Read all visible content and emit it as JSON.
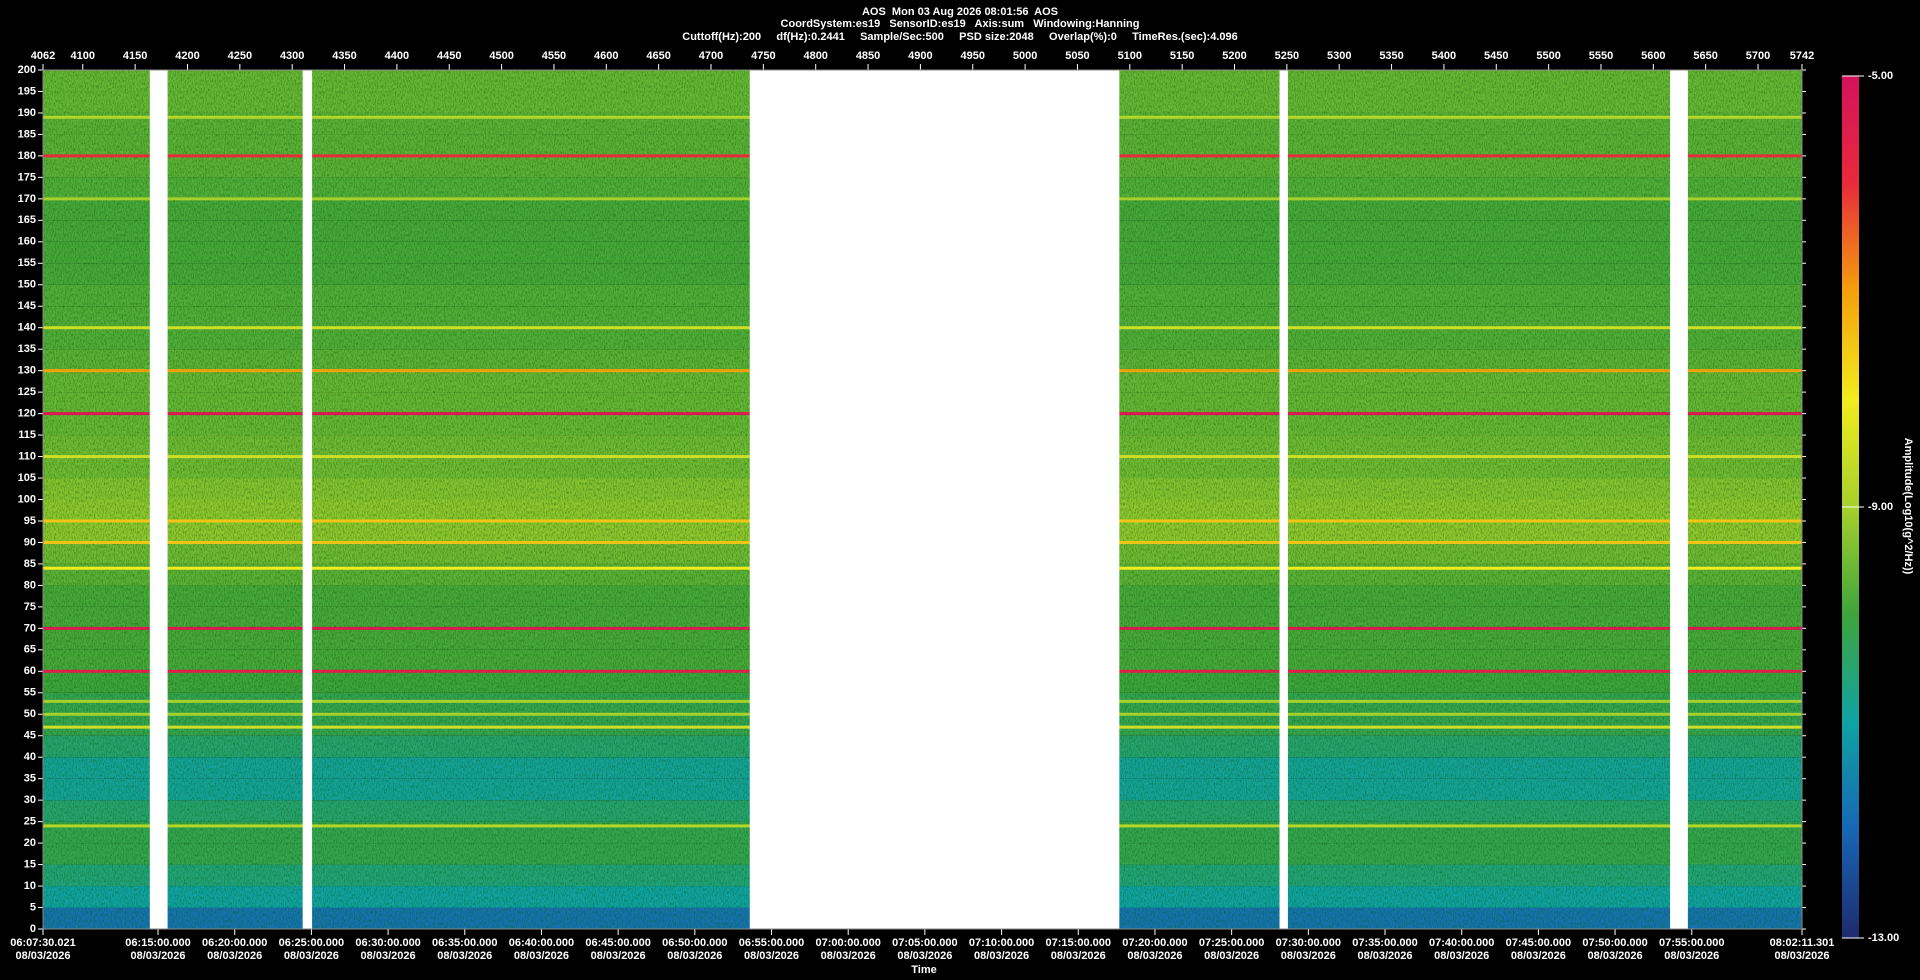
{
  "chart_data": {
    "type": "spectrogram",
    "title": "AOS  Mon 03 Aug 2026 08:01:56  AOS",
    "header_lines": [
      "CoordSystem:es19   SensorID:es19   Axis:sum   Windowing:Hanning",
      "Cuttoff(Hz):200     df(Hz):0.2441     Sample/Sec:500     PSD size:2048     Overlap(%):0     TimeRes.(sec):4.096"
    ],
    "xlabel": "Time",
    "colorbar_label": "Amplitude(Log10(g^2/Hz))",
    "xlim": [
      4062,
      5742
    ],
    "xticks": [
      4062,
      4100,
      4150,
      4200,
      4250,
      4300,
      4350,
      4400,
      4450,
      4500,
      4550,
      4600,
      4650,
      4700,
      4750,
      4800,
      4850,
      4900,
      4950,
      5000,
      5050,
      5100,
      5150,
      5200,
      5250,
      5300,
      5350,
      5400,
      5450,
      5500,
      5550,
      5600,
      5650,
      5700,
      5742
    ],
    "time_ticks": [
      {
        "value": 4062,
        "label": "06:07:30.021",
        "date": "08/03/2026"
      },
      {
        "value": 4171.86,
        "label": "06:15:00.000",
        "date": "08/03/2026"
      },
      {
        "value": 4245.1,
        "label": "06:20:00.000",
        "date": "08/03/2026"
      },
      {
        "value": 4318.34,
        "label": "06:25:00.000",
        "date": "08/03/2026"
      },
      {
        "value": 4391.59,
        "label": "06:30:00.000",
        "date": "08/03/2026"
      },
      {
        "value": 4464.83,
        "label": "06:35:00.000",
        "date": "08/03/2026"
      },
      {
        "value": 4538.07,
        "label": "06:40:00.000",
        "date": "08/03/2026"
      },
      {
        "value": 4611.31,
        "label": "06:45:00.000",
        "date": "08/03/2026"
      },
      {
        "value": 4684.56,
        "label": "06:50:00.000",
        "date": "08/03/2026"
      },
      {
        "value": 4757.8,
        "label": "06:55:00.000",
        "date": "08/03/2026"
      },
      {
        "value": 4831.04,
        "label": "07:00:00.000",
        "date": "08/03/2026"
      },
      {
        "value": 4904.28,
        "label": "07:05:00.000",
        "date": "08/03/2026"
      },
      {
        "value": 4977.53,
        "label": "07:10:00.000",
        "date": "08/03/2026"
      },
      {
        "value": 5050.77,
        "label": "07:15:00.000",
        "date": "08/03/2026"
      },
      {
        "value": 5124.01,
        "label": "07:20:00.000",
        "date": "08/03/2026"
      },
      {
        "value": 5197.26,
        "label": "07:25:00.000",
        "date": "08/03/2026"
      },
      {
        "value": 5270.5,
        "label": "07:30:00.000",
        "date": "08/03/2026"
      },
      {
        "value": 5343.74,
        "label": "07:35:00.000",
        "date": "08/03/2026"
      },
      {
        "value": 5416.98,
        "label": "07:40:00.000",
        "date": "08/03/2026"
      },
      {
        "value": 5490.23,
        "label": "07:45:00.000",
        "date": "08/03/2026"
      },
      {
        "value": 5563.47,
        "label": "07:50:00.000",
        "date": "08/03/2026"
      },
      {
        "value": 5636.71,
        "label": "07:55:00.000",
        "date": "08/03/2026"
      },
      {
        "value": 5742,
        "label": "08:02:11.301",
        "date": "08/03/2026"
      }
    ],
    "ylim": [
      0,
      200
    ],
    "yticks": [
      0,
      5,
      10,
      15,
      20,
      25,
      30,
      35,
      40,
      45,
      50,
      55,
      60,
      65,
      70,
      75,
      80,
      85,
      90,
      95,
      100,
      105,
      110,
      115,
      120,
      125,
      130,
      135,
      140,
      145,
      150,
      155,
      160,
      165,
      170,
      175,
      180,
      185,
      190,
      195,
      200
    ],
    "zlim": [
      -13,
      -5
    ],
    "zticks": [
      {
        "value": -5,
        "label": "-5.00"
      },
      {
        "value": -9,
        "label": "-9.00"
      },
      {
        "value": -13,
        "label": "-13.00"
      }
    ],
    "colormap": [
      "#1e2a6e",
      "#1766b4",
      "#10a2a4",
      "#3ea43c",
      "#a6d02c",
      "#f2ec1e",
      "#f4a00c",
      "#e82a3a",
      "#d4125c"
    ],
    "spectrum": {
      "bins": [
        0,
        5,
        10,
        15,
        20,
        25,
        30,
        35,
        40,
        45,
        50,
        55,
        60,
        65,
        70,
        75,
        80,
        85,
        90,
        95,
        100,
        105,
        110,
        115,
        120,
        125,
        130,
        135,
        140,
        145,
        150,
        155,
        160,
        165,
        170,
        175,
        180,
        185,
        190,
        195,
        200
      ],
      "values": [
        -11.8,
        -11,
        -10.6,
        -10.2,
        -10.2,
        -10.5,
        -10.9,
        -10.9,
        -10.5,
        -10.2,
        -10.2,
        -10,
        -9.9,
        -9.9,
        -9.9,
        -9.9,
        -9.7,
        -9.5,
        -9.2,
        -9.2,
        -9.3,
        -9.5,
        -9.5,
        -9.6,
        -9.6,
        -9.6,
        -9.7,
        -9.8,
        -9.8,
        -9.8,
        -9.9,
        -9.9,
        -9.9,
        -9.9,
        -9.8,
        -9.7,
        -9.7,
        -9.7,
        -9.6,
        -9.6
      ]
    },
    "tones": {
      "frequencies": [
        24,
        47,
        50,
        53,
        60,
        70,
        84,
        90,
        95,
        110,
        120,
        130,
        140,
        170,
        180,
        189
      ],
      "values": [
        -8.8,
        -8.5,
        -9,
        -9,
        -5.5,
        -5.3,
        -8,
        -7.5,
        -7.5,
        -8.5,
        -5.3,
        -7,
        -8.5,
        -9,
        -6,
        -8.8
      ]
    },
    "gaps": [
      [
        4164,
        4181
      ],
      [
        4310,
        4319
      ],
      [
        4737,
        5090
      ],
      [
        5243,
        5251
      ],
      [
        5616,
        5633
      ]
    ]
  }
}
